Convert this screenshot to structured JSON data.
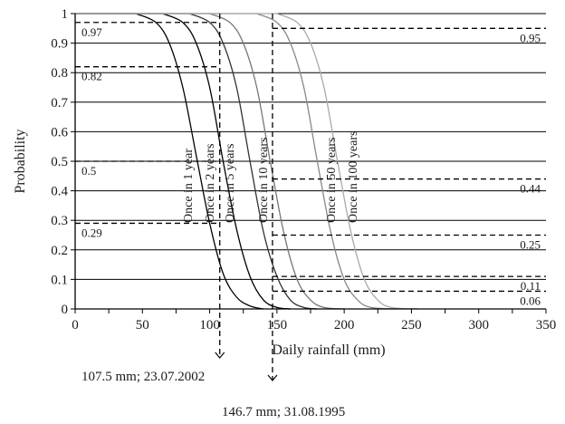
{
  "chart_data": {
    "type": "line",
    "xlabel": "Daily rainfall (mm)",
    "ylabel": "Probability",
    "xlim": [
      0,
      350
    ],
    "ylim": [
      0,
      1
    ],
    "x_ticks": [
      0,
      50,
      100,
      150,
      200,
      250,
      300,
      350
    ],
    "y_ticks": [
      0,
      0.1,
      0.2,
      0.3,
      0.4,
      0.5,
      0.6,
      0.7,
      0.8,
      0.9,
      1
    ],
    "grid": "horizontal",
    "series": [
      {
        "name": "Once in 1 year",
        "color": "#000000",
        "x": [
          45,
          60,
          70,
          80,
          90,
          100,
          110,
          120,
          130,
          140
        ],
        "y": [
          1,
          0.97,
          0.9,
          0.75,
          0.52,
          0.29,
          0.12,
          0.04,
          0.01,
          0
        ]
      },
      {
        "name": "Once in 2 years",
        "color": "#000000",
        "x": [
          65,
          80,
          90,
          100,
          110,
          120,
          130,
          140,
          150,
          160
        ],
        "y": [
          1,
          0.97,
          0.9,
          0.75,
          0.5,
          0.27,
          0.11,
          0.03,
          0.005,
          0
        ]
      },
      {
        "name": "Once in 5 years",
        "color": "#333333",
        "x": [
          85,
          100,
          110,
          120,
          130,
          140,
          150,
          160,
          170,
          180
        ],
        "y": [
          1,
          0.97,
          0.9,
          0.75,
          0.5,
          0.26,
          0.11,
          0.03,
          0.005,
          0
        ]
      },
      {
        "name": "Once in 10 years",
        "color": "#777777",
        "x": [
          100,
          115,
          125,
          135,
          145,
          155,
          165,
          175,
          185,
          200
        ],
        "y": [
          1,
          0.97,
          0.9,
          0.75,
          0.5,
          0.26,
          0.1,
          0.03,
          0.005,
          0
        ]
      },
      {
        "name": "Once in 50 years",
        "color": "#888888",
        "x": [
          135,
          150,
          160,
          170,
          180,
          190,
          200,
          210,
          220,
          240
        ],
        "y": [
          1,
          0.97,
          0.9,
          0.75,
          0.5,
          0.26,
          0.1,
          0.03,
          0.005,
          0
        ]
      },
      {
        "name": "Once in 100 years",
        "color": "#aaaaaa",
        "x": [
          150,
          165,
          175,
          185,
          195,
          205,
          215,
          225,
          235,
          255
        ],
        "y": [
          1,
          0.97,
          0.9,
          0.75,
          0.5,
          0.26,
          0.1,
          0.03,
          0.005,
          0
        ]
      }
    ],
    "markers": [
      {
        "x": 107.5,
        "label": "107.5 mm; 23.07.2002",
        "levels": [
          {
            "y": 0.97,
            "label": "0.97"
          },
          {
            "y": 0.82,
            "label": "0.82"
          },
          {
            "y": 0.5,
            "label": "0.5"
          },
          {
            "y": 0.29,
            "label": "0.29"
          }
        ]
      },
      {
        "x": 146.7,
        "label": "146.7 mm; 31.08.1995",
        "levels": [
          {
            "y": 0.95,
            "label": "0.95"
          },
          {
            "y": 0.44,
            "label": "0.44"
          },
          {
            "y": 0.25,
            "label": "0.25"
          },
          {
            "y": 0.11,
            "label": "0.11"
          },
          {
            "y": 0.06,
            "label": "0.06"
          }
        ]
      }
    ],
    "line_color": "#000000"
  }
}
